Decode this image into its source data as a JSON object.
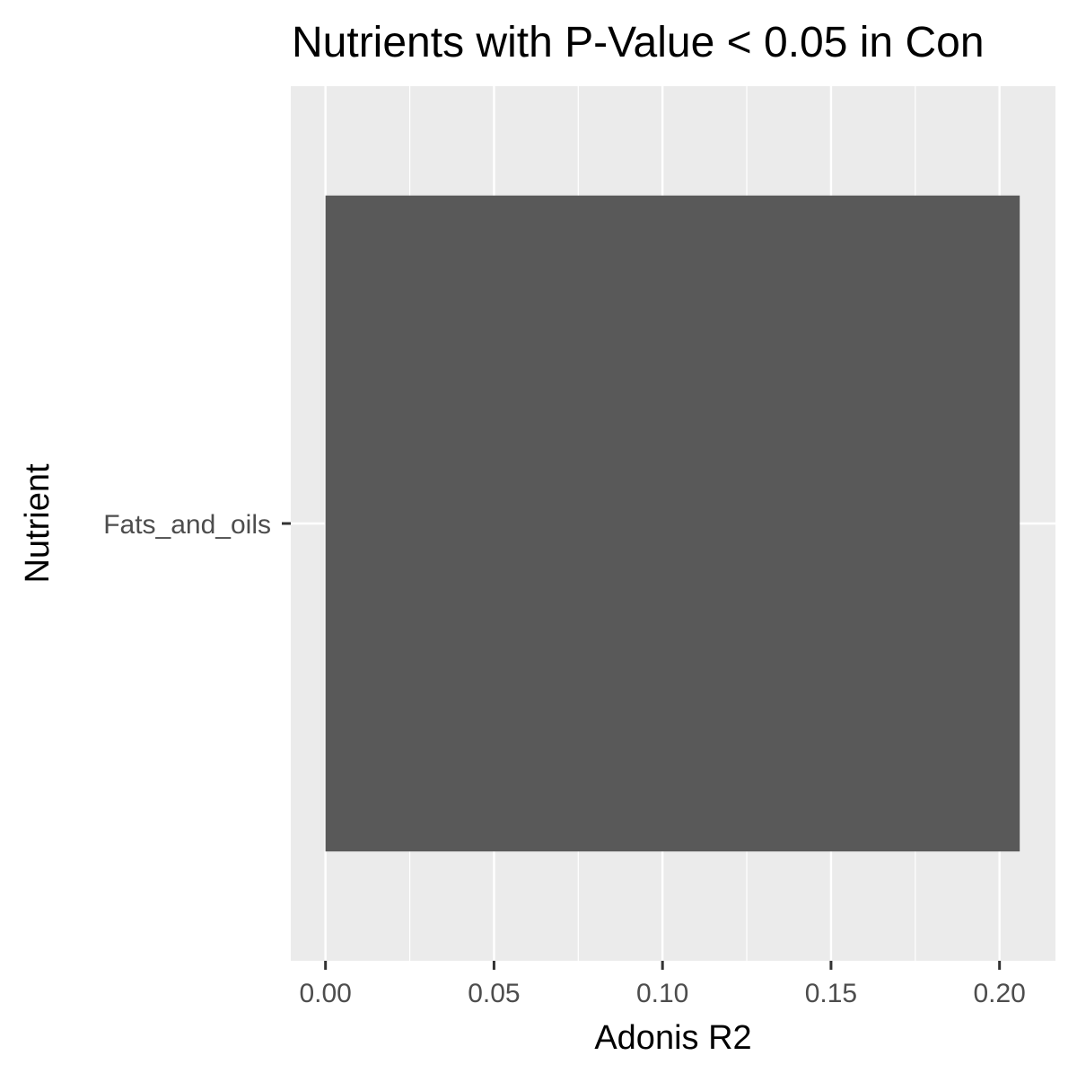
{
  "chart_data": {
    "type": "bar",
    "orientation": "horizontal",
    "title": "Nutrients with P-Value < 0.05 in Con",
    "xlabel": "Adonis R2",
    "ylabel": "Nutrient",
    "categories": [
      "Fats_and_oils"
    ],
    "values": [
      0.206
    ],
    "xlim": [
      -0.0103,
      0.2166
    ],
    "x_ticks": [
      0.0,
      0.05,
      0.1,
      0.15,
      0.2
    ],
    "x_tick_labels": [
      "0.00",
      "0.05",
      "0.10",
      "0.15",
      "0.20"
    ],
    "grid": true,
    "legend": "none",
    "colors": {
      "bar": "#595959",
      "panel_background": "#ebebeb",
      "grid_major": "#ffffff",
      "grid_minor": "#ffffff",
      "tick_text": "#4d4d4d",
      "axis_text": "#000000"
    }
  }
}
